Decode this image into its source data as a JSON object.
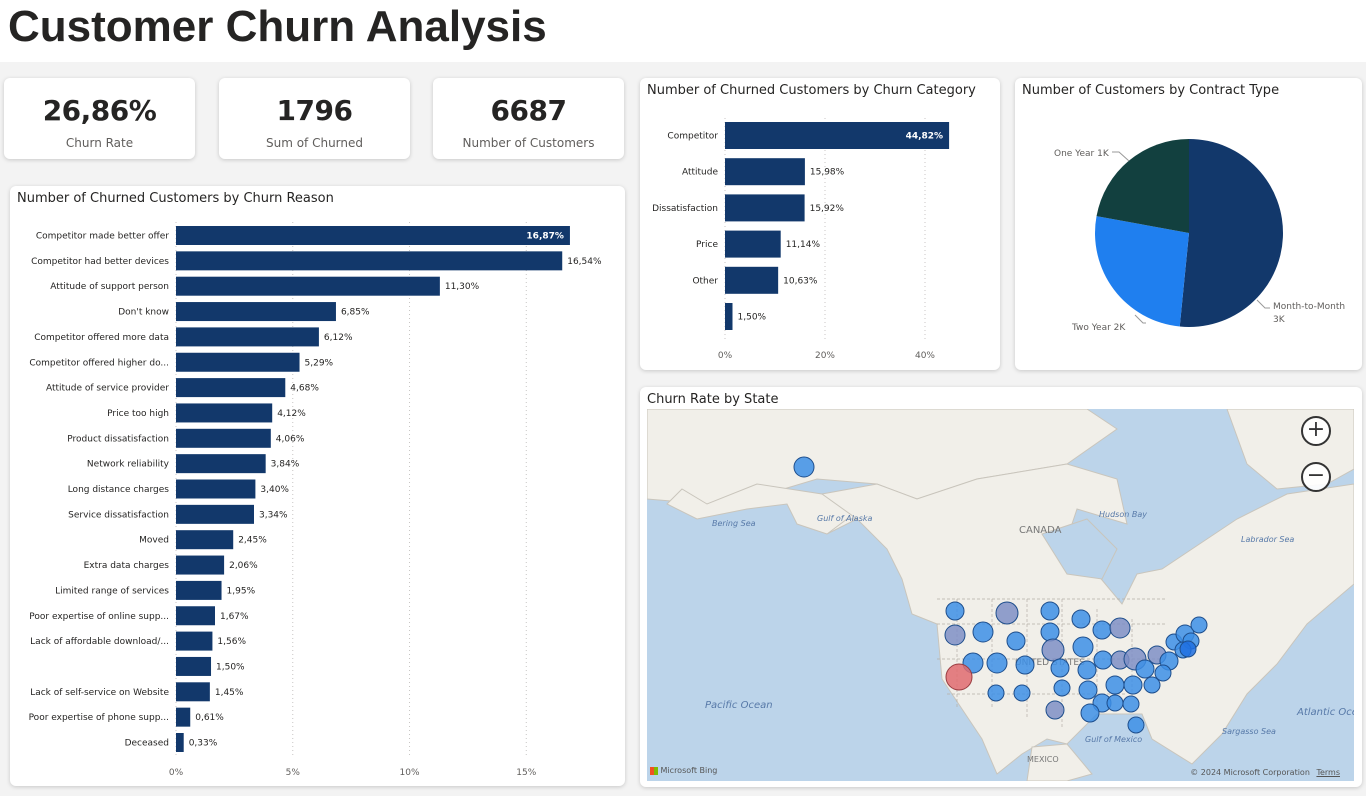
{
  "page": {
    "title": "Customer Churn Analysis"
  },
  "kpis": [
    {
      "value": "26,86%",
      "label": "Churn Rate"
    },
    {
      "value": "1796",
      "label": "Sum of Churned"
    },
    {
      "value": "6687",
      "label": "Number of Customers"
    }
  ],
  "reason_chart": {
    "title": "Number of Churned Customers by Churn Reason"
  },
  "category_chart": {
    "title": "Number of Churned Customers by Churn Category"
  },
  "contract_chart": {
    "title": "Number of Customers by Contract Type"
  },
  "map": {
    "title": "Churn Rate by State",
    "labels": [
      "Bering Sea",
      "Gulf of Alaska",
      "CANADA",
      "Hudson Bay",
      "Labrador Sea",
      "Pacific Ocean",
      "UNITED STATES",
      "Gulf of Mexico",
      "MEXICO",
      "Sargasso Sea",
      "Atlantic Ocean"
    ],
    "zoom_in": "+",
    "zoom_out": "−",
    "bing_logo": "Microsoft Bing",
    "copyright": "© 2024 Microsoft Corporation",
    "terms": "Terms"
  },
  "colors": {
    "bar": "#12386b",
    "pie_month": "#12386b",
    "pie_two": "#1f7fef",
    "pie_one": "#12403f",
    "bubble": "#3d8fe6",
    "bubble_dim": "#7f8fc5",
    "bubble_high": "#e06b70"
  },
  "chart_data": [
    {
      "type": "bar",
      "orientation": "horizontal",
      "title": "Number of Churned Customers by Churn Reason",
      "categories": [
        "Competitor made better offer",
        "Competitor had better devices",
        "Attitude of support person",
        "Don't know",
        "Competitor offered more data",
        "Competitor offered higher do...",
        "Attitude of service provider",
        "Price too high",
        "Product dissatisfaction",
        "Network reliability",
        "Long distance charges",
        "Service dissatisfaction",
        "Moved",
        "Extra data charges",
        "Limited range of services",
        "Poor expertise of online supp...",
        "Lack of affordable download/...",
        "",
        "Lack of self-service on Website",
        "Poor expertise of phone supp...",
        "Deceased"
      ],
      "values": [
        16.87,
        16.54,
        11.3,
        6.85,
        6.12,
        5.29,
        4.68,
        4.12,
        4.06,
        3.84,
        3.4,
        3.34,
        2.45,
        2.06,
        1.95,
        1.67,
        1.56,
        1.5,
        1.45,
        0.61,
        0.33
      ],
      "data_labels": [
        "16,87%",
        "16,54%",
        "11,30%",
        "6,85%",
        "6,12%",
        "5,29%",
        "4,68%",
        "4,12%",
        "4,06%",
        "3,84%",
        "3,40%",
        "3,34%",
        "2,45%",
        "2,06%",
        "1,95%",
        "1,67%",
        "1,56%",
        "1,50%",
        "1,45%",
        "0,61%",
        "0,33%"
      ],
      "xlim": [
        0,
        18.5
      ],
      "xticks": [
        0,
        5,
        10,
        15
      ],
      "xtick_labels": [
        "0%",
        "5%",
        "10%",
        "15%"
      ],
      "grid": true
    },
    {
      "type": "bar",
      "orientation": "horizontal",
      "title": "Number of Churned Customers by Churn Category",
      "categories": [
        "Competitor",
        "Attitude",
        "Dissatisfaction",
        "Price",
        "Other",
        ""
      ],
      "values": [
        44.82,
        15.98,
        15.92,
        11.14,
        10.63,
        1.5
      ],
      "data_labels": [
        "44,82%",
        "15,98%",
        "15,92%",
        "11,14%",
        "10,63%",
        "1,50%"
      ],
      "xlim": [
        0,
        54
      ],
      "xticks": [
        0,
        20,
        40
      ],
      "xtick_labels": [
        "0%",
        "20%",
        "40%"
      ],
      "grid": true
    },
    {
      "type": "pie",
      "title": "Number of Customers by Contract Type",
      "slices": [
        {
          "label": "Month-to-Month",
          "value_label": "3K",
          "value": 3450
        },
        {
          "label": "Two Year",
          "value_label": "2K",
          "value": 1760
        },
        {
          "label": "One Year",
          "value_label": "1K",
          "value": 1480
        }
      ]
    }
  ]
}
